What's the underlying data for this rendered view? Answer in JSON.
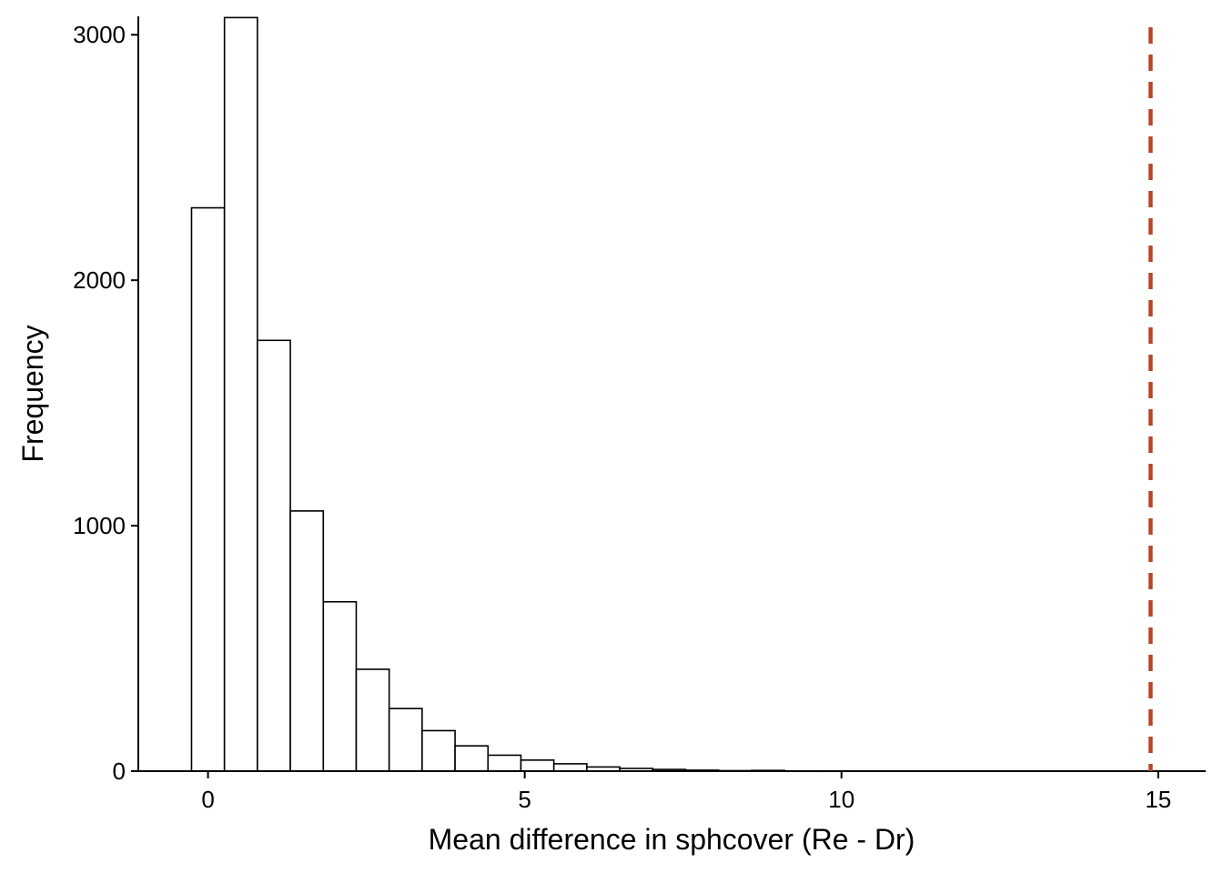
{
  "chart_data": {
    "type": "bar",
    "title": "",
    "xlabel": "Mean difference in sphcover (Re - Dr)",
    "ylabel": "Frequency",
    "xlim": [
      -1.1,
      15.75
    ],
    "ylim": [
      0,
      3075
    ],
    "bin_width": 0.52,
    "bins": [
      {
        "x0": -0.26,
        "x1": 0.26,
        "count": 2295
      },
      {
        "x0": 0.26,
        "x1": 0.78,
        "count": 3070
      },
      {
        "x0": 0.78,
        "x1": 1.3,
        "count": 1755
      },
      {
        "x0": 1.3,
        "x1": 1.82,
        "count": 1060
      },
      {
        "x0": 1.82,
        "x1": 2.34,
        "count": 690
      },
      {
        "x0": 2.34,
        "x1": 2.86,
        "count": 415
      },
      {
        "x0": 2.86,
        "x1": 3.38,
        "count": 255
      },
      {
        "x0": 3.38,
        "x1": 3.9,
        "count": 165
      },
      {
        "x0": 3.9,
        "x1": 4.42,
        "count": 103
      },
      {
        "x0": 4.42,
        "x1": 4.94,
        "count": 65
      },
      {
        "x0": 4.94,
        "x1": 5.46,
        "count": 45
      },
      {
        "x0": 5.46,
        "x1": 5.98,
        "count": 30
      },
      {
        "x0": 5.98,
        "x1": 6.5,
        "count": 17
      },
      {
        "x0": 6.5,
        "x1": 7.02,
        "count": 11
      },
      {
        "x0": 7.02,
        "x1": 7.54,
        "count": 7
      },
      {
        "x0": 7.54,
        "x1": 8.06,
        "count": 4
      },
      {
        "x0": 8.06,
        "x1": 8.58,
        "count": 2
      },
      {
        "x0": 8.58,
        "x1": 9.1,
        "count": 3
      },
      {
        "x0": 9.1,
        "x1": 9.62,
        "count": 1
      },
      {
        "x0": 9.62,
        "x1": 10.14,
        "count": 1
      }
    ],
    "x_ticks": [
      0,
      5,
      10,
      15
    ],
    "y_ticks": [
      0,
      1000,
      2000,
      3000
    ],
    "reference_line": {
      "x": 14.88,
      "style": "dashed",
      "color": "#b5472c"
    },
    "grid": false,
    "legend": "none"
  }
}
